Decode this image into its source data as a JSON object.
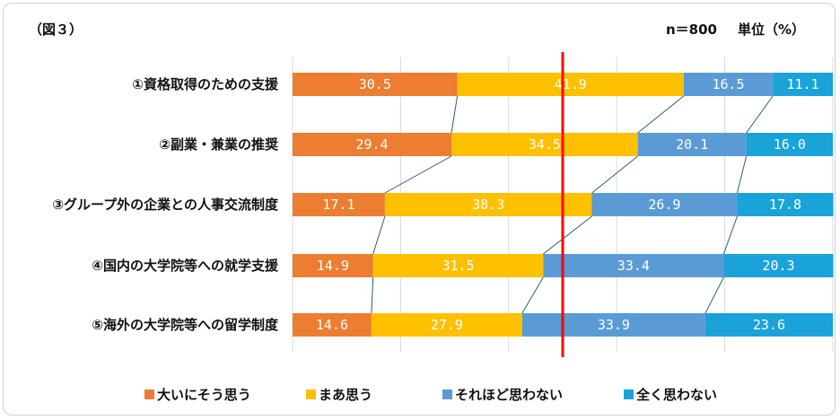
{
  "header": {
    "figure_label": "（図３）",
    "sample_size": "n＝800",
    "unit": "単位（%）"
  },
  "chart_data": {
    "type": "bar",
    "stacked": true,
    "orientation": "horizontal",
    "normalized_percent": true,
    "title": "",
    "categories": [
      "①資格取得のための支援",
      "②副業・兼業の推奨",
      "③グループ外の企業との人事交流制度",
      "④国内の大学院等への就学支援",
      "⑤海外の大学院等への留学制度"
    ],
    "series": [
      {
        "name": "大いにそう思う",
        "color": "#ED7D31",
        "values": [
          30.5,
          29.4,
          17.1,
          14.9,
          14.6
        ]
      },
      {
        "name": "まあ思う",
        "color": "#FFC000",
        "values": [
          41.9,
          34.5,
          38.3,
          31.5,
          27.9
        ]
      },
      {
        "name": "それほど思わない",
        "color": "#5B9BD5",
        "values": [
          16.5,
          20.1,
          26.9,
          33.4,
          33.9
        ]
      },
      {
        "name": "全く思わない",
        "color": "#1AA3D9",
        "values": [
          11.1,
          16.0,
          17.8,
          20.3,
          23.6
        ]
      }
    ],
    "xlim": [
      0,
      100
    ],
    "reference_line": {
      "x": 50,
      "color": "#FF0000"
    },
    "grid": true,
    "connector_lines": true,
    "legend_position": "bottom"
  }
}
